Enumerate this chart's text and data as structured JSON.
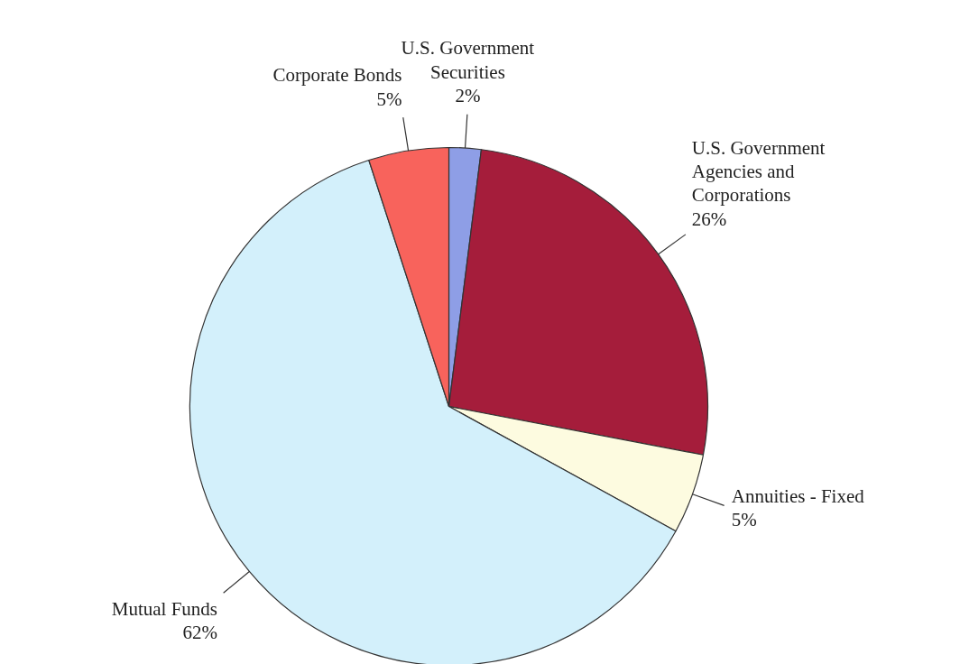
{
  "chart_data": {
    "type": "pie",
    "categories": [
      "U.S. Government Securities",
      "U.S. Government Agencies and Corporations",
      "Annuities - Fixed",
      "Mutual Funds",
      "Corporate Bonds"
    ],
    "values": [
      2,
      26,
      5,
      62,
      5
    ],
    "value_labels": [
      "2%",
      "26%",
      "5%",
      "62%",
      "5%"
    ],
    "colors": [
      "#8e9ee6",
      "#a51d3b",
      "#fdfbe0",
      "#d3f0fb",
      "#f8635c"
    ],
    "legend": false
  }
}
